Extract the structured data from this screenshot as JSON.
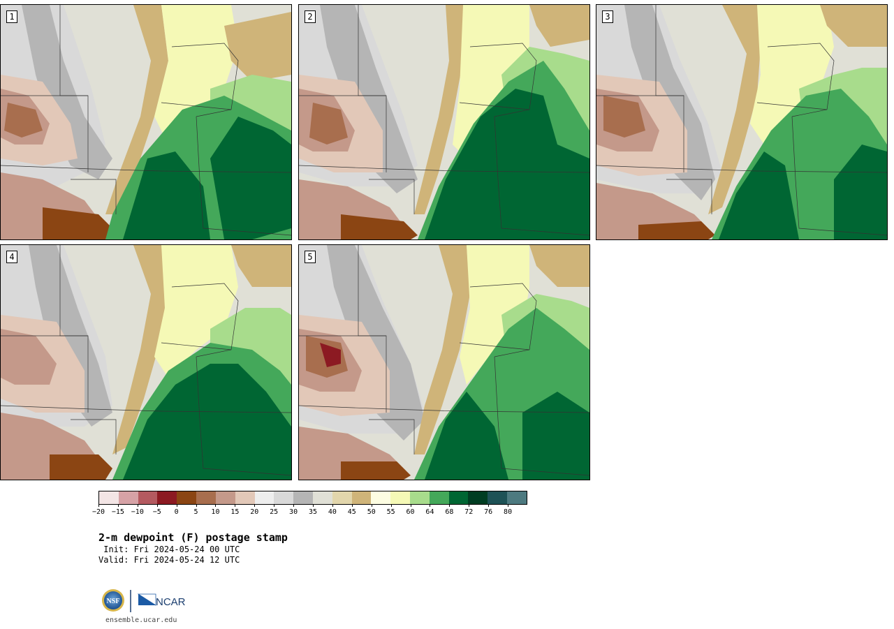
{
  "panels": [
    {
      "label": "1"
    },
    {
      "label": "2"
    },
    {
      "label": "3"
    },
    {
      "label": "4"
    },
    {
      "label": "5"
    }
  ],
  "colorbar": {
    "colors": [
      "#f3e5e5",
      "#d6a2a6",
      "#b45a60",
      "#8c1a22",
      "#8b4513",
      "#a86e4e",
      "#c4998a",
      "#e2c8b8",
      "#eeeeee",
      "#d9d9d9",
      "#b5b5b5",
      "#e0e0d6",
      "#e2d6ac",
      "#cfb479",
      "#fdfde2",
      "#f5f9b6",
      "#a8dc8c",
      "#44a85a",
      "#006633",
      "#003d22",
      "#1e5256",
      "#4d7a80"
    ],
    "ticks": [
      "−20",
      "−15",
      "−10",
      "−5",
      "0",
      "5",
      "10",
      "15",
      "20",
      "25",
      "30",
      "35",
      "40",
      "45",
      "50",
      "55",
      "60",
      "64",
      "68",
      "72",
      "76",
      "80"
    ]
  },
  "title": "2-m dewpoint (F) postage stamp",
  "init": " Init: Fri 2024-05-24 00 UTC",
  "valid": "Valid: Fri 2024-05-24 12 UTC",
  "logos": {
    "nsf": "NSF",
    "ncar": "NCAR"
  },
  "site": "ensemble.ucar.edu"
}
